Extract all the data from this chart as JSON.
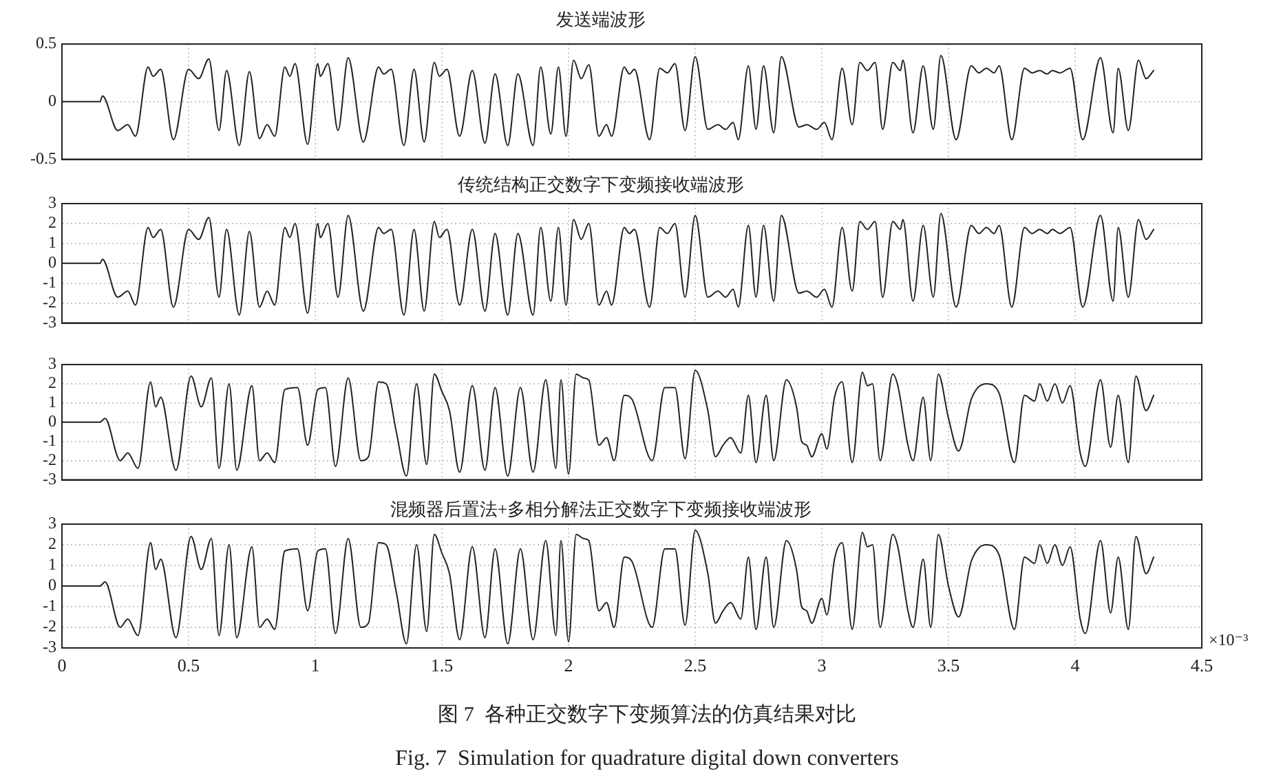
{
  "chart_data": [
    {
      "type": "line",
      "title": "发送端波形",
      "x": [
        0,
        0.15,
        0.16,
        0.22,
        0.26,
        0.29,
        0.34,
        0.36,
        0.39,
        0.44,
        0.5,
        0.54,
        0.58,
        0.62,
        0.65,
        0.7,
        0.74,
        0.78,
        0.81,
        0.84,
        0.88,
        0.9,
        0.92,
        0.97,
        1.01,
        1.02,
        1.05,
        1.09,
        1.13,
        1.19,
        1.25,
        1.27,
        1.3,
        1.35,
        1.39,
        1.43,
        1.47,
        1.49,
        1.52,
        1.57,
        1.62,
        1.67,
        1.71,
        1.76,
        1.8,
        1.86,
        1.89,
        1.93,
        1.96,
        1.99,
        2.02,
        2.05,
        2.08,
        2.12,
        2.15,
        2.17,
        2.22,
        2.24,
        2.26,
        2.32,
        2.36,
        2.39,
        2.42,
        2.46,
        2.5,
        2.55,
        2.59,
        2.62,
        2.65,
        2.67,
        2.71,
        2.74,
        2.77,
        2.81,
        2.84,
        2.91,
        2.94,
        2.98,
        3.01,
        3.04,
        3.08,
        3.12,
        3.15,
        3.18,
        3.21,
        3.24,
        3.28,
        3.31,
        3.32,
        3.36,
        3.4,
        3.44,
        3.47,
        3.53,
        3.59,
        3.62,
        3.65,
        3.68,
        3.7,
        3.75,
        3.8,
        3.83,
        3.86,
        3.89,
        3.91,
        3.94,
        3.98,
        4.03,
        4.1,
        4.15,
        4.17,
        4.21,
        4.25,
        4.28,
        4.31
      ],
      "values": [
        0,
        0,
        0.05,
        -0.25,
        -0.2,
        -0.3,
        0.3,
        0.22,
        0.28,
        -0.33,
        0.28,
        0.2,
        0.37,
        -0.25,
        0.27,
        -0.38,
        0.26,
        -0.32,
        -0.2,
        -0.3,
        0.3,
        0.22,
        0.33,
        -0.37,
        0.33,
        0.22,
        0.33,
        -0.25,
        0.38,
        -0.35,
        0.3,
        0.24,
        0.28,
        -0.38,
        0.28,
        -0.35,
        0.34,
        0.22,
        0.28,
        -0.3,
        0.27,
        -0.36,
        0.24,
        -0.38,
        0.24,
        -0.38,
        0.3,
        -0.28,
        0.3,
        -0.3,
        0.36,
        0.2,
        0.32,
        -0.3,
        -0.2,
        -0.3,
        0.3,
        0.24,
        0.28,
        -0.33,
        0.29,
        0.25,
        0.33,
        -0.25,
        0.39,
        -0.24,
        -0.2,
        -0.24,
        -0.18,
        -0.33,
        0.31,
        -0.24,
        0.31,
        -0.27,
        0.39,
        -0.22,
        -0.2,
        -0.24,
        -0.18,
        -0.33,
        0.29,
        -0.2,
        0.34,
        0.27,
        0.34,
        -0.24,
        0.34,
        0.27,
        0.36,
        -0.27,
        0.31,
        -0.24,
        0.4,
        -0.33,
        0.31,
        0.25,
        0.29,
        0.25,
        0.31,
        -0.33,
        0.29,
        0.25,
        0.27,
        0.24,
        0.27,
        0.25,
        0.29,
        -0.33,
        0.38,
        -0.27,
        0.29,
        -0.25,
        0.36,
        0.2,
        0.27
      ],
      "color": "#222222",
      "xlim": [
        0,
        4.5
      ],
      "xticks": [
        0,
        0.5,
        1,
        1.5,
        2,
        2.5,
        3,
        3.5,
        4,
        4.5
      ],
      "ylim": [
        -0.5,
        0.5
      ],
      "yticks": [
        -0.5,
        0,
        0.5
      ],
      "grid": true,
      "tick_labels": "y"
    },
    {
      "type": "line",
      "title": "传统结构正交数字下变频接收端波形",
      "x": [
        0,
        0.15,
        0.16,
        0.22,
        0.26,
        0.29,
        0.34,
        0.36,
        0.39,
        0.44,
        0.5,
        0.54,
        0.58,
        0.62,
        0.65,
        0.7,
        0.74,
        0.78,
        0.81,
        0.84,
        0.88,
        0.9,
        0.92,
        0.97,
        1.01,
        1.02,
        1.05,
        1.09,
        1.13,
        1.19,
        1.25,
        1.27,
        1.3,
        1.35,
        1.39,
        1.43,
        1.47,
        1.49,
        1.52,
        1.57,
        1.62,
        1.67,
        1.71,
        1.76,
        1.8,
        1.86,
        1.89,
        1.93,
        1.96,
        1.99,
        2.02,
        2.05,
        2.08,
        2.12,
        2.15,
        2.17,
        2.22,
        2.24,
        2.26,
        2.32,
        2.36,
        2.39,
        2.42,
        2.46,
        2.5,
        2.55,
        2.59,
        2.62,
        2.65,
        2.67,
        2.71,
        2.74,
        2.77,
        2.81,
        2.84,
        2.91,
        2.94,
        2.98,
        3.01,
        3.04,
        3.08,
        3.12,
        3.15,
        3.18,
        3.21,
        3.24,
        3.28,
        3.31,
        3.32,
        3.36,
        3.4,
        3.44,
        3.47,
        3.53,
        3.59,
        3.62,
        3.65,
        3.68,
        3.7,
        3.75,
        3.8,
        3.83,
        3.86,
        3.89,
        3.91,
        3.94,
        3.98,
        4.03,
        4.1,
        4.15,
        4.17,
        4.21,
        4.25,
        4.28,
        4.31
      ],
      "values": [
        0,
        0,
        0.2,
        -1.7,
        -1.4,
        -2.1,
        1.8,
        1.3,
        1.7,
        -2.2,
        1.7,
        1.2,
        2.3,
        -1.7,
        1.7,
        -2.6,
        1.6,
        -2.2,
        -1.4,
        -2.1,
        1.8,
        1.3,
        2,
        -2.5,
        2,
        1.3,
        2,
        -1.7,
        2.4,
        -2.4,
        1.8,
        1.5,
        1.7,
        -2.6,
        1.7,
        -2.4,
        2.1,
        1.3,
        1.7,
        -2.1,
        1.7,
        -2.4,
        1.5,
        -2.6,
        1.5,
        -2.6,
        1.8,
        -1.9,
        1.8,
        -2.1,
        2.2,
        1.2,
        2,
        -2.1,
        -1.4,
        -2.1,
        1.8,
        1.5,
        1.7,
        -2.2,
        1.8,
        1.5,
        2,
        -1.7,
        2.4,
        -1.7,
        -1.4,
        -1.7,
        -1.3,
        -2.2,
        1.9,
        -1.7,
        1.9,
        -1.9,
        2.4,
        -1.5,
        -1.4,
        -1.7,
        -1.3,
        -2.2,
        1.8,
        -1.4,
        2.1,
        1.7,
        2.1,
        -1.7,
        2.1,
        1.7,
        2.2,
        -1.9,
        1.9,
        -1.7,
        2.5,
        -2.2,
        1.9,
        1.5,
        1.8,
        1.5,
        1.9,
        -2.2,
        1.8,
        1.5,
        1.7,
        1.5,
        1.7,
        1.5,
        1.8,
        -2.2,
        2.4,
        -1.9,
        1.8,
        -1.7,
        2.2,
        1.2,
        1.7
      ],
      "color": "#222222",
      "xlim": [
        0,
        4.5
      ],
      "xticks": [
        0,
        0.5,
        1,
        1.5,
        2,
        2.5,
        3,
        3.5,
        4,
        4.5
      ],
      "ylim": [
        -3,
        3
      ],
      "yticks": [
        -3,
        -2,
        -1,
        0,
        1,
        2,
        3
      ],
      "grid": true,
      "tick_labels": "y"
    },
    {
      "type": "line",
      "x": [
        0,
        0.15,
        0.17,
        0.23,
        0.26,
        0.3,
        0.35,
        0.37,
        0.39,
        0.45,
        0.51,
        0.55,
        0.59,
        0.62,
        0.66,
        0.69,
        0.75,
        0.78,
        0.81,
        0.84,
        0.88,
        0.93,
        0.97,
        1.01,
        1.04,
        1.08,
        1.13,
        1.18,
        1.21,
        1.25,
        1.28,
        1.32,
        1.36,
        1.4,
        1.44,
        1.47,
        1.5,
        1.53,
        1.57,
        1.62,
        1.67,
        1.71,
        1.76,
        1.81,
        1.86,
        1.91,
        1.95,
        1.97,
        2,
        2.03,
        2.06,
        2.08,
        2.12,
        2.15,
        2.18,
        2.22,
        2.25,
        2.33,
        2.38,
        2.42,
        2.46,
        2.5,
        2.55,
        2.58,
        2.61,
        2.64,
        2.68,
        2.71,
        2.74,
        2.78,
        2.81,
        2.86,
        2.9,
        2.92,
        2.94,
        2.96,
        3,
        3.02,
        3.05,
        3.08,
        3.12,
        3.16,
        3.18,
        3.2,
        3.23,
        3.28,
        3.3,
        3.34,
        3.36,
        3.4,
        3.43,
        3.46,
        3.5,
        3.54,
        3.59,
        3.65,
        3.7,
        3.76,
        3.8,
        3.84,
        3.86,
        3.89,
        3.92,
        3.95,
        3.98,
        4.02,
        4.04,
        4.1,
        4.14,
        4.17,
        4.21,
        4.24,
        4.28,
        4.31
      ],
      "values": [
        0,
        0,
        0.2,
        -2,
        -1.6,
        -2.4,
        2.1,
        0.8,
        1.3,
        -2.5,
        2.4,
        0.8,
        2.3,
        -2.4,
        2,
        -2.5,
        1.9,
        -2,
        -1.6,
        -2.1,
        1.7,
        1.8,
        -1.2,
        1.7,
        1.8,
        -2.3,
        2.3,
        -2,
        -1.8,
        2.1,
        2,
        -0.5,
        -2.8,
        2,
        -2.2,
        2.5,
        1.6,
        0.6,
        -2.6,
        1.9,
        -2.5,
        1.8,
        -2.8,
        1.8,
        -2.6,
        2.2,
        -2.4,
        2.2,
        -2.7,
        2.5,
        2.3,
        2.2,
        -1.2,
        -0.8,
        -2,
        1.4,
        1.2,
        -2,
        1.8,
        1.8,
        -1.9,
        2.7,
        0.6,
        -1.8,
        -1.2,
        -0.8,
        -1.6,
        1.4,
        -2.1,
        1.4,
        -2,
        2.2,
        0.8,
        -1,
        -1.2,
        -1.8,
        -0.6,
        -1.4,
        1.3,
        2.1,
        -2.1,
        2.6,
        1.9,
        2,
        -2,
        2.5,
        1.9,
        -1.2,
        -2,
        1.3,
        -2,
        2.5,
        0.2,
        -1.5,
        1.2,
        2,
        1.5,
        -2.1,
        1.4,
        1.1,
        2,
        1.1,
        2,
        1,
        1.9,
        -1.6,
        -2.3,
        2.2,
        -1.3,
        1.4,
        -2.1,
        2.4,
        0.6,
        1.4
      ],
      "color": "#222222",
      "xlim": [
        0,
        4.5
      ],
      "xticks": [
        0,
        0.5,
        1,
        1.5,
        2,
        2.5,
        3,
        3.5,
        4,
        4.5
      ],
      "ylim": [
        -3,
        3
      ],
      "yticks": [
        -3,
        -2,
        -1,
        0,
        1,
        2,
        3
      ],
      "grid": true,
      "tick_labels": "y"
    },
    {
      "type": "line",
      "title": "混频器后置法+多相分解法正交数字下变频接收端波形",
      "xlabel": "×10⁻³",
      "x": [
        0,
        0.15,
        0.17,
        0.23,
        0.26,
        0.3,
        0.35,
        0.37,
        0.39,
        0.45,
        0.51,
        0.55,
        0.59,
        0.62,
        0.66,
        0.69,
        0.75,
        0.78,
        0.81,
        0.84,
        0.88,
        0.93,
        0.97,
        1.01,
        1.04,
        1.08,
        1.13,
        1.18,
        1.21,
        1.25,
        1.28,
        1.32,
        1.36,
        1.4,
        1.44,
        1.47,
        1.5,
        1.53,
        1.57,
        1.62,
        1.67,
        1.71,
        1.76,
        1.81,
        1.86,
        1.91,
        1.95,
        1.97,
        2,
        2.03,
        2.06,
        2.08,
        2.12,
        2.15,
        2.18,
        2.22,
        2.25,
        2.33,
        2.38,
        2.42,
        2.46,
        2.5,
        2.55,
        2.58,
        2.61,
        2.64,
        2.68,
        2.71,
        2.74,
        2.78,
        2.81,
        2.86,
        2.9,
        2.92,
        2.94,
        2.96,
        3,
        3.02,
        3.05,
        3.08,
        3.12,
        3.16,
        3.18,
        3.2,
        3.23,
        3.28,
        3.3,
        3.34,
        3.36,
        3.4,
        3.43,
        3.46,
        3.5,
        3.54,
        3.59,
        3.65,
        3.7,
        3.76,
        3.8,
        3.84,
        3.86,
        3.89,
        3.92,
        3.95,
        3.98,
        4.02,
        4.04,
        4.1,
        4.14,
        4.17,
        4.21,
        4.24,
        4.28,
        4.31
      ],
      "values": [
        0,
        0,
        0.2,
        -2,
        -1.6,
        -2.4,
        2.1,
        0.8,
        1.3,
        -2.5,
        2.4,
        0.8,
        2.3,
        -2.4,
        2,
        -2.5,
        1.9,
        -2,
        -1.6,
        -2.1,
        1.7,
        1.8,
        -1.2,
        1.7,
        1.8,
        -2.3,
        2.3,
        -2,
        -1.8,
        2.1,
        2,
        -0.3,
        -2.8,
        2,
        -2.2,
        2.5,
        1.6,
        0.6,
        -2.6,
        1.9,
        -2.5,
        1.8,
        -2.8,
        1.8,
        -2.6,
        2.2,
        -2.4,
        2.2,
        -2.7,
        2.5,
        2.3,
        2.2,
        -1.2,
        -0.8,
        -2,
        1.4,
        1.2,
        -2,
        1.8,
        1.8,
        -1.9,
        2.7,
        0.6,
        -1.8,
        -1.2,
        -0.8,
        -1.6,
        1.4,
        -2.1,
        1.4,
        -2,
        2.2,
        0.8,
        -1,
        -1.2,
        -1.8,
        -0.6,
        -1.4,
        1.3,
        2.1,
        -2.1,
        2.6,
        1.9,
        2,
        -2,
        2.5,
        1.9,
        -1.2,
        -2,
        1.3,
        -2,
        2.5,
        0,
        -1.5,
        1.2,
        2,
        1.5,
        -2.1,
        1.4,
        1.1,
        2,
        1.1,
        2,
        1,
        1.9,
        -1.6,
        -2.3,
        2.2,
        -1.3,
        1.4,
        -2.1,
        2.4,
        0.6,
        1.4
      ],
      "color": "#222222",
      "xlim": [
        0,
        4.5
      ],
      "xticks": [
        0,
        0.5,
        1,
        1.5,
        2,
        2.5,
        3,
        3.5,
        4,
        4.5
      ],
      "ylim": [
        -3,
        3
      ],
      "yticks": [
        -3,
        -2,
        -1,
        0,
        1,
        2,
        3
      ],
      "grid": true,
      "annotations": [
        "图 7  各种正交数字下变频算法的仿真结果对比",
        "Fig. 7  Simulation for quadrature digital down converters"
      ]
    }
  ]
}
